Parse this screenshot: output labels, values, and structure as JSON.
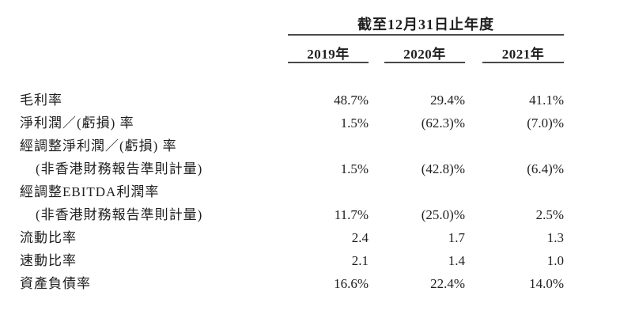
{
  "page": {
    "background": "#ffffff",
    "text_color": "#1e1e1e",
    "rule_color": "#4a4a4a"
  },
  "table": {
    "period_header": "截至12月31日止年度",
    "year_columns": [
      "2019年",
      "2020年",
      "2021年"
    ],
    "rows": [
      {
        "label": "毛利率",
        "values": [
          "48.7%",
          "29.4%",
          "41.1%"
        ]
      },
      {
        "label": "淨利潤／(虧損) 率",
        "values": [
          "1.5%",
          "(62.3)%",
          "(7.0)%"
        ]
      },
      {
        "label": "經調整淨利潤／(虧損) 率",
        "values": [
          "",
          "",
          ""
        ]
      },
      {
        "label": "(非香港財務報告準則計量)",
        "values": [
          "1.5%",
          "(42.8)%",
          "(6.4)%"
        ]
      },
      {
        "label": "經調整EBITDA利潤率",
        "values": [
          "",
          "",
          ""
        ]
      },
      {
        "label": "(非香港財務報告準則計量)",
        "values": [
          "11.7%",
          "(25.0)%",
          "2.5%"
        ]
      },
      {
        "label": "流動比率",
        "values": [
          "2.4",
          "1.7",
          "1.3"
        ]
      },
      {
        "label": "速動比率",
        "values": [
          "2.1",
          "1.4",
          "1.0"
        ]
      },
      {
        "label": "資產負債率",
        "values": [
          "16.6%",
          "22.4%",
          "14.0%"
        ]
      }
    ]
  }
}
